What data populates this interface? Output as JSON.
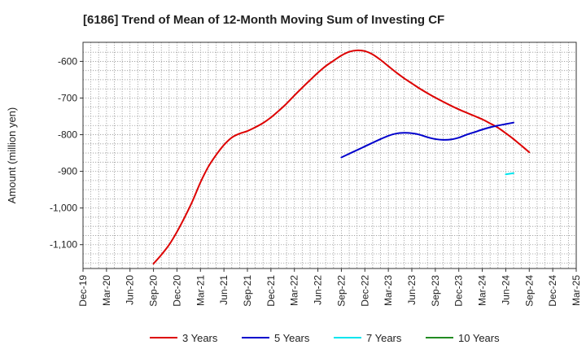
{
  "chart_data": {
    "type": "line",
    "title": "[6186]  Trend of Mean of 12-Month Moving Sum of Investing CF",
    "xlabel": "",
    "ylabel": "Amount (million yen)",
    "ylim": [
      -1165,
      -548
    ],
    "y_ticks": [
      -600,
      -700,
      -800,
      -900,
      -1000,
      -1100
    ],
    "y_tick_labels": [
      "-600",
      "-700",
      "-800",
      "-900",
      "-1,000",
      "-1,100"
    ],
    "x_tick_labels": [
      "Dec-19",
      "Mar-20",
      "Jun-20",
      "Sep-20",
      "Dec-20",
      "Mar-21",
      "Jun-21",
      "Sep-21",
      "Dec-21",
      "Mar-22",
      "Jun-22",
      "Sep-22",
      "Dec-22",
      "Mar-23",
      "Jun-23",
      "Sep-23",
      "Dec-23",
      "Mar-24",
      "Jun-24",
      "Sep-24",
      "Dec-24",
      "Mar-25"
    ],
    "grid": true,
    "legend_position": "bottom",
    "series": [
      {
        "name": "3 Years",
        "color": "#dd0000",
        "points": [
          [
            3.0,
            -1152
          ],
          [
            3.33,
            -1128
          ],
          [
            3.67,
            -1100
          ],
          [
            4.0,
            -1065
          ],
          [
            4.33,
            -1025
          ],
          [
            4.67,
            -980
          ],
          [
            5.0,
            -930
          ],
          [
            5.33,
            -888
          ],
          [
            5.67,
            -855
          ],
          [
            6.0,
            -828
          ],
          [
            6.33,
            -808
          ],
          [
            6.67,
            -797
          ],
          [
            7.0,
            -790
          ],
          [
            7.33,
            -780
          ],
          [
            7.67,
            -768
          ],
          [
            8.0,
            -753
          ],
          [
            8.33,
            -735
          ],
          [
            8.67,
            -715
          ],
          [
            9.0,
            -693
          ],
          [
            9.33,
            -672
          ],
          [
            9.67,
            -651
          ],
          [
            10.0,
            -631
          ],
          [
            10.33,
            -613
          ],
          [
            10.67,
            -598
          ],
          [
            11.0,
            -584
          ],
          [
            11.33,
            -574
          ],
          [
            11.67,
            -570
          ],
          [
            12.0,
            -572
          ],
          [
            12.33,
            -581
          ],
          [
            12.67,
            -596
          ],
          [
            13.0,
            -613
          ],
          [
            13.33,
            -630
          ],
          [
            13.67,
            -646
          ],
          [
            14.0,
            -660
          ],
          [
            14.33,
            -674
          ],
          [
            14.67,
            -687
          ],
          [
            15.0,
            -699
          ],
          [
            15.33,
            -710
          ],
          [
            15.67,
            -721
          ],
          [
            16.0,
            -731
          ],
          [
            16.33,
            -740
          ],
          [
            16.67,
            -749
          ],
          [
            17.0,
            -758
          ],
          [
            17.33,
            -769
          ],
          [
            17.67,
            -781
          ],
          [
            18.0,
            -796
          ],
          [
            18.33,
            -812
          ],
          [
            18.67,
            -830
          ],
          [
            19.0,
            -848
          ]
        ]
      },
      {
        "name": "5 Years",
        "color": "#0000cc",
        "points": [
          [
            11.0,
            -862
          ],
          [
            11.33,
            -852
          ],
          [
            11.67,
            -842
          ],
          [
            12.0,
            -832
          ],
          [
            12.33,
            -822
          ],
          [
            12.67,
            -812
          ],
          [
            13.0,
            -803
          ],
          [
            13.33,
            -797
          ],
          [
            13.67,
            -795
          ],
          [
            14.0,
            -796
          ],
          [
            14.33,
            -800
          ],
          [
            14.67,
            -807
          ],
          [
            15.0,
            -812
          ],
          [
            15.33,
            -814
          ],
          [
            15.67,
            -813
          ],
          [
            16.0,
            -808
          ],
          [
            16.33,
            -800
          ],
          [
            16.67,
            -793
          ],
          [
            17.0,
            -786
          ],
          [
            17.33,
            -780
          ],
          [
            17.67,
            -775
          ],
          [
            18.0,
            -771
          ],
          [
            18.33,
            -767
          ]
        ]
      },
      {
        "name": "7 Years",
        "color": "#00e5ee",
        "points": [
          [
            18.0,
            -908
          ],
          [
            18.33,
            -905
          ]
        ]
      },
      {
        "name": "10 Years",
        "color": "#228b22",
        "points": []
      }
    ]
  }
}
